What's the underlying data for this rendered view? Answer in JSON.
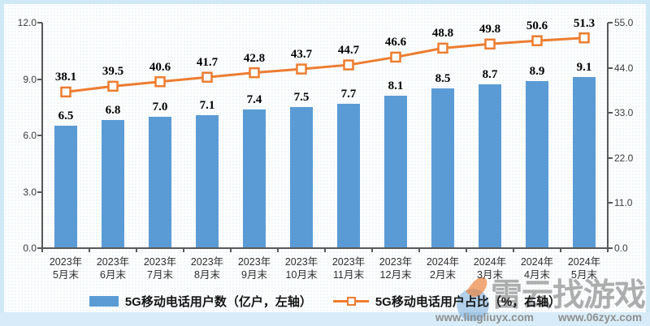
{
  "chart_data": {
    "type": "combo-bar-line",
    "title": "",
    "grid": false,
    "legend_position": "bottom",
    "categories": [
      {
        "year": "2023年",
        "month": "5月末"
      },
      {
        "year": "2023年",
        "month": "6月末"
      },
      {
        "year": "2023年",
        "month": "7月末"
      },
      {
        "year": "2023年",
        "month": "8月末"
      },
      {
        "year": "2023年",
        "month": "9月末"
      },
      {
        "year": "2023年",
        "month": "10月末"
      },
      {
        "year": "2023年",
        "month": "11月末"
      },
      {
        "year": "2023年",
        "month": "12月末"
      },
      {
        "year": "2024年",
        "month": "2月末"
      },
      {
        "year": "2024年",
        "month": "3月末"
      },
      {
        "year": "2024年",
        "month": "4月末"
      },
      {
        "year": "2024年",
        "month": "5月末"
      }
    ],
    "series": [
      {
        "name": "5G移动电话用户数（亿户，左轴）",
        "type": "bar",
        "axis": "left",
        "color": "#5B9BD5",
        "values": [
          6.5,
          6.8,
          7.0,
          7.1,
          7.4,
          7.5,
          7.7,
          8.1,
          8.5,
          8.7,
          8.9,
          9.1
        ],
        "labels": [
          "6.5",
          "6.8",
          "7.0",
          "7.1",
          "7.4",
          "7.5",
          "7.7",
          "8.1",
          "8.5",
          "8.7",
          "8.9",
          "9.1"
        ]
      },
      {
        "name": "5G移动电话用户占比（%，右轴）",
        "type": "line",
        "axis": "right",
        "color": "#ED7D31",
        "marker": "open-square",
        "values": [
          38.1,
          39.5,
          40.6,
          41.7,
          42.8,
          43.7,
          44.7,
          46.6,
          48.8,
          49.8,
          50.6,
          51.3
        ],
        "labels": [
          "38.1",
          "39.5",
          "40.6",
          "41.7",
          "42.8",
          "43.7",
          "44.7",
          "46.6",
          "48.8",
          "49.8",
          "50.6",
          "51.3"
        ]
      }
    ],
    "left_axis": {
      "min": 0,
      "max": 12,
      "tick_labels": [
        "0.0",
        "3.0",
        "6.0",
        "9.0",
        "12.0"
      ]
    },
    "right_axis": {
      "min": 0,
      "max": 55,
      "tick_labels": [
        "0.0",
        "11.0",
        "22.0",
        "33.0",
        "44.0",
        "55.0"
      ]
    }
  },
  "colors": {
    "bar": "#5B9BD5",
    "line": "#ED7D31",
    "frame": "#cfe9f7"
  },
  "watermark": {
    "title": "雷云找游戏",
    "url_left": "www.lingliuyx.com",
    "url_right": "www.06zyx.com"
  }
}
